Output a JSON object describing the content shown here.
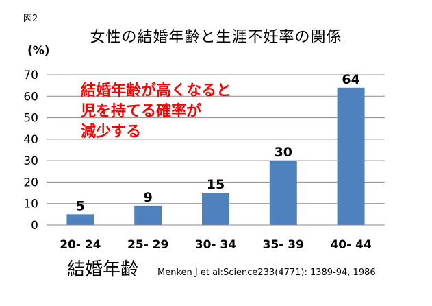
{
  "figure_label": "図2",
  "chart_data": {
    "type": "bar",
    "title": "女性の結婚年齢と生涯不妊率の関係",
    "ylabel": "(%)",
    "xlabel": "結婚年齢",
    "categories": [
      "20- 24",
      "25- 29",
      "30- 34",
      "35- 39",
      "40- 44"
    ],
    "values": [
      5,
      9,
      15,
      30,
      64
    ],
    "data_labels": [
      "5",
      "9",
      "15",
      "30",
      "64"
    ],
    "ylim": [
      0,
      70
    ],
    "yticks": [
      "0",
      "10",
      "20",
      "30",
      "40",
      "50",
      "60",
      "70"
    ],
    "grid": true,
    "bar_color": "#4f81bd",
    "annotation": [
      "結婚年齢が高くなると",
      "児を持てる確率が",
      "減少する"
    ],
    "annotation_color": "#ff0000",
    "source": "Menken J et al:Science233(4771): 1389-94, 1986"
  }
}
